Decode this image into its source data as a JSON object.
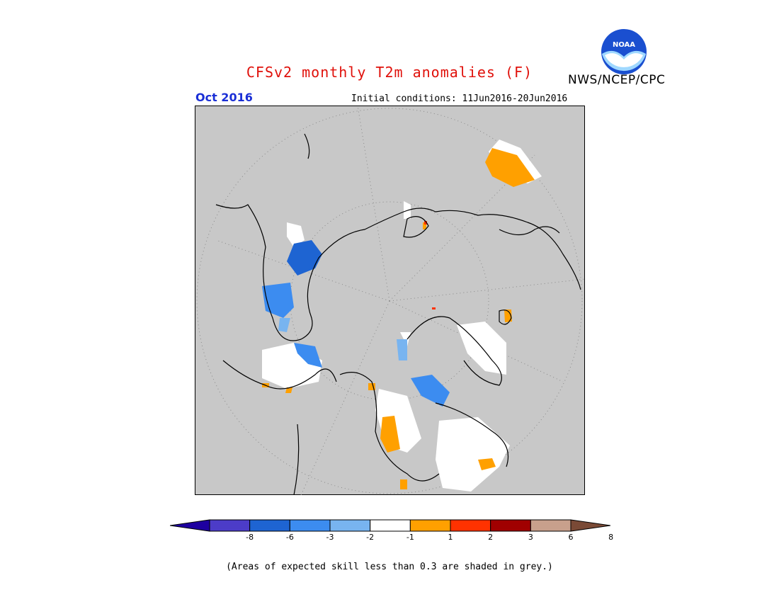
{
  "header": {
    "title": "CFSv2 monthly T2m anomalies (F)",
    "agency": "NWS/NCEP/CPC",
    "logo_text": "NOAA",
    "month": "Oct 2016",
    "initial_conditions": "Initial conditions: 11Jun2016-20Jun2016"
  },
  "map": {
    "projection": "north-polar-stereographic",
    "background_grey_meaning": "skill < 0.3"
  },
  "colorbar": {
    "ticks": [
      "-8",
      "-6",
      "-3",
      "-2",
      "-1",
      "1",
      "2",
      "3",
      "6",
      "8"
    ],
    "colors": [
      "#1e00a0",
      "#4c3cc8",
      "#1e64d2",
      "#3c8cf0",
      "#78b4f0",
      "#ffffff",
      "#ffa000",
      "#ff3200",
      "#a00000",
      "#c8a08c",
      "#7a4a36"
    ]
  },
  "footnote": "(Areas of expected skill less than 0.3 are shaded in grey.)"
}
